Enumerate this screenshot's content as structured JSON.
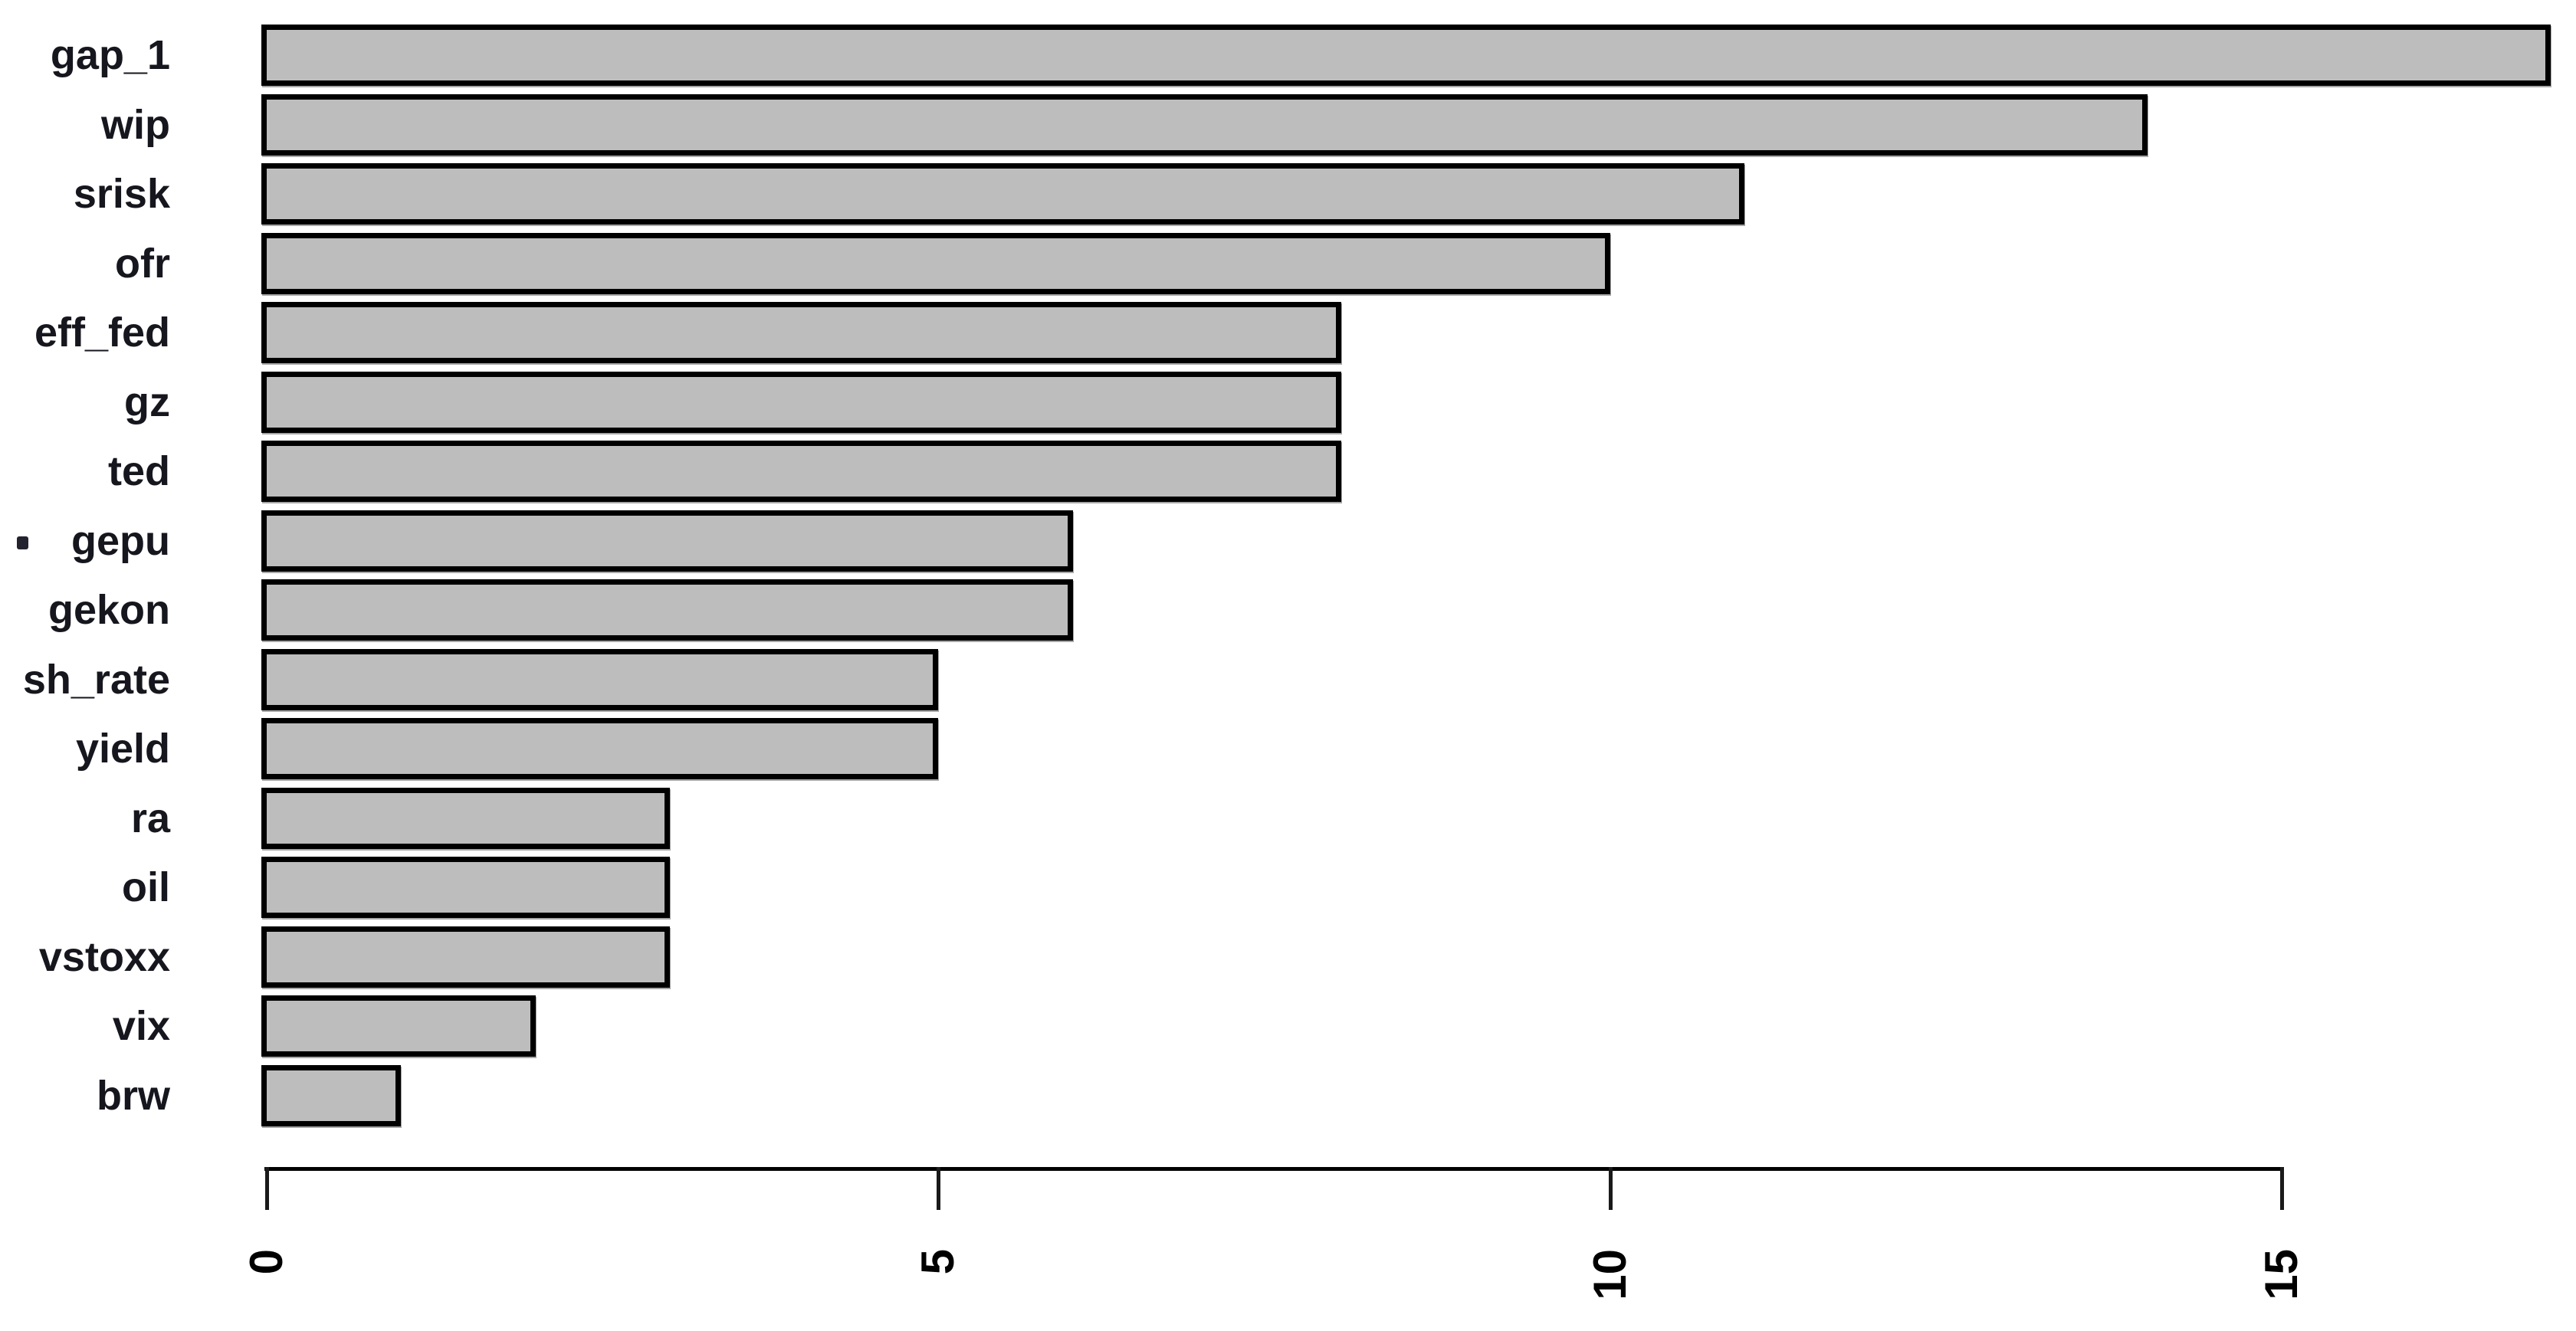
{
  "chart_data": {
    "type": "bar",
    "orientation": "horizontal",
    "title": "",
    "xlabel": "",
    "ylabel": "",
    "categories": [
      "gap_1",
      "wip",
      "srisk",
      "ofr",
      "eff_fed",
      "gz",
      "ted",
      "gepu",
      "gekon",
      "sh_rate",
      "yield",
      "ra",
      "oil",
      "vstoxx",
      "vix",
      "brw"
    ],
    "values": [
      17,
      14,
      11,
      10,
      8,
      8,
      8,
      6,
      6,
      5,
      5,
      3,
      3,
      3,
      2,
      1
    ],
    "x_ticks": [
      0,
      5,
      10,
      15
    ],
    "xlim": [
      0,
      17.2
    ],
    "grid": false,
    "legend": null,
    "tick_label_rotation_degrees": 90,
    "bar_fill_color": "#bdbdbd",
    "bar_border_color": "#000000",
    "axis_color": "#000000",
    "label_color": "#16161e"
  }
}
